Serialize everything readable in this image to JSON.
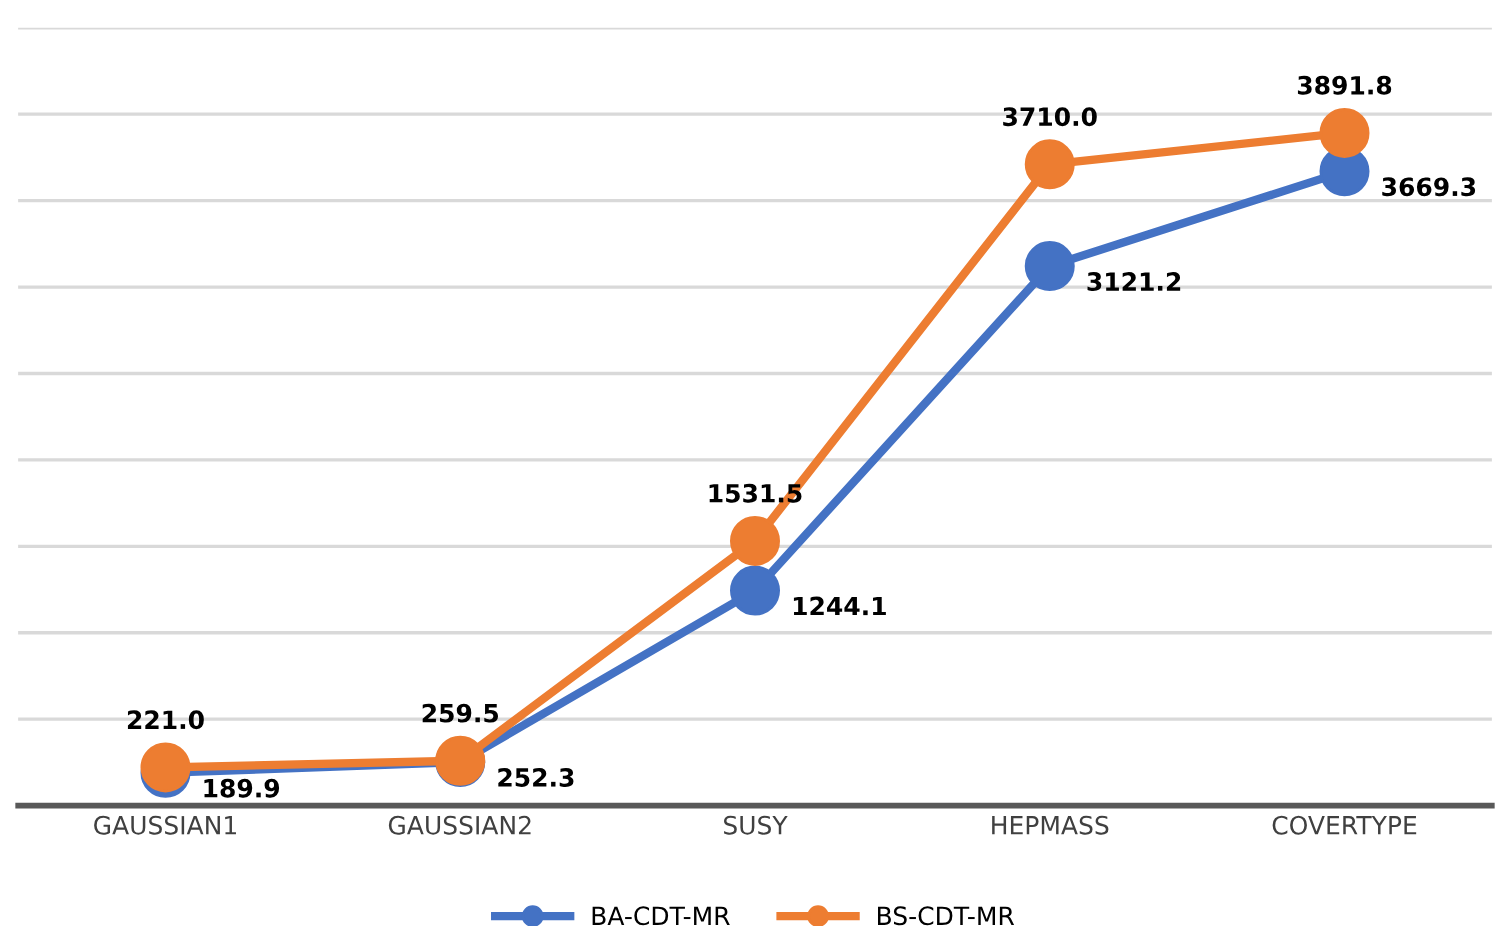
{
  "chart_data": {
    "type": "line",
    "categories": [
      "GAUSSIAN1",
      "GAUSSIAN2",
      "SUSY",
      "HEPMASS",
      "COVERTYPE"
    ],
    "series": [
      {
        "name": "BA-CDT-MR",
        "color": "#4472c4",
        "values": [
          189.9,
          252.3,
          1244.1,
          3121.2,
          3669.3
        ],
        "value_labels": [
          "189.9",
          "252.3",
          "1244.1",
          "3121.2",
          "3669.3"
        ]
      },
      {
        "name": "BS-CDT-MR",
        "color": "#ed7d31",
        "values": [
          221.0,
          259.5,
          1531.5,
          3710.0,
          3891.8
        ],
        "value_labels": [
          "221.0",
          "259.5",
          "1531.5",
          "3710.0",
          "3891.8"
        ]
      }
    ],
    "ylim": [
      0,
      4500
    ],
    "yticks": [
      {
        "value": 0,
        "label": null
      },
      {
        "value": 500,
        "label": null
      },
      {
        "value": 1000,
        "label": null
      },
      {
        "value": 1500,
        "label": null
      },
      {
        "value": 2000,
        "label": null
      },
      {
        "value": 2500,
        "label": null
      },
      {
        "value": 3000,
        "label": null
      },
      {
        "value": 3500,
        "label": null
      },
      {
        "value": 4000,
        "label": null
      },
      {
        "value": 4500,
        "label": null
      }
    ],
    "tick_labels": "x",
    "grid": "y",
    "legend": "bottom",
    "marker": "circle",
    "line_style": "solid",
    "data_labels": true
  }
}
